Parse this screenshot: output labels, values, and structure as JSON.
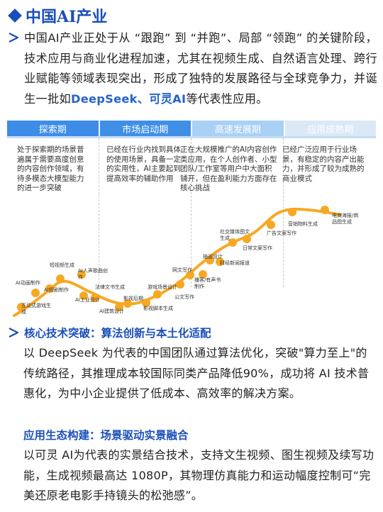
{
  "heading": {
    "title": "中国AI产业"
  },
  "intro": {
    "text_a": "中国AI产业正处于从 “跟跑” 到 “并跑”、局部 “领跑” 的关键阶段，技术应用与商业化进程加速，尤其在视频生成、自然语言处理、跨行业赋能等领域表现突出，形成了独特的发展路径与全球竞争力，并诞生一批如",
    "highlight": "DeepSeek、可灵AI",
    "text_b": "等代表性应用。"
  },
  "phases": [
    {
      "label": "探索期",
      "desc": "处于探索期的场景普遍属于需要高度创意的内容创作领域，有待多模态大模型能力的进一步突破"
    },
    {
      "label": "市场启动期",
      "desc": "已经在行业内找到具体的使用场景，具备一定的实用性，AI主要起到提高效率的辅助作用"
    },
    {
      "label": "高速发展期",
      "desc": "正在大规模推广的AI内容创作类应用，在个人创作者、小型团队/工作室等用户中大面积铺开，但在盈利能力方面存在核心挑战"
    },
    {
      "label": "应用成熟期",
      "desc": "已经广泛应用于行业场景，有稳定的内容产出能力，并形成了较为成熟的商业模式"
    }
  ],
  "curve_points": [
    {
      "name": "互动式游戏生成"
    },
    {
      "name": "AI动画制作"
    },
    {
      "name": "AI短剧制作"
    },
    {
      "name": "短视频生成"
    },
    {
      "name": "AI人声歌曲创作"
    },
    {
      "name": "AI工业设计"
    },
    {
      "name": "法律文书生成"
    },
    {
      "name": "AI建筑设计"
    },
    {
      "name": "影视后期"
    },
    {
      "name": "影视脚本生成"
    },
    {
      "name": "游戏场景设计"
    },
    {
      "name": "公文写作"
    },
    {
      "name": "网文写作"
    },
    {
      "name": "播客/有声书制作"
    },
    {
      "name": "插画设计"
    },
    {
      "name": "财经新闻报道"
    },
    {
      "name": "社交媒体图文生成"
    },
    {
      "name": "日常文案写作"
    },
    {
      "name": "广告文案写作"
    },
    {
      "name": "营销物料生成"
    },
    {
      "name": "电商海报/商品图生成"
    }
  ],
  "section1": {
    "title": "核心技术突破：算法创新与本土化适配",
    "body": "以 DeepSeek 为代表的中国团队通过算法优化，突破\"算力至上\"的传统路径，其推理成本较国际同类产品降低90%，成功将 AI 技术普惠化，为中小企业提供了低成本、高效率的解决方案。"
  },
  "section2": {
    "title": "应用生态构建：场景驱动实景融合",
    "body": "以可灵 AI为代表的实景结合技术，支持文生视频、图生视频及续写功能，生成视频最高达 1080P，其物理仿真能力和运动幅度控制可“完美还原老电影手持镜头的松弛感”。"
  },
  "colors": {
    "accent": "#1a4fb8",
    "highlight": "#2563c9",
    "curve": "#f7a823"
  }
}
